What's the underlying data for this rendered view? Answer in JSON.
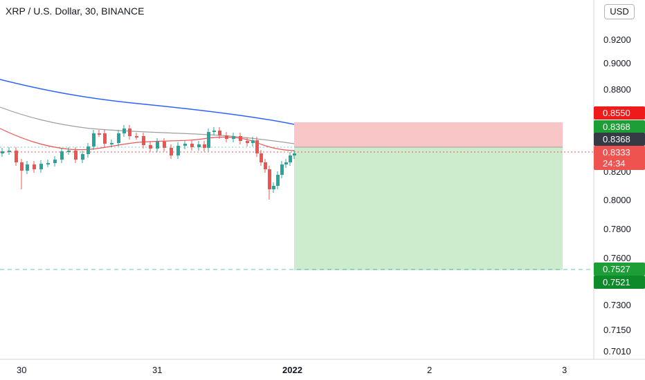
{
  "header": {
    "title": "XRP / U.S. Dollar, 30, BINANCE",
    "currency": "USD"
  },
  "price_axis": {
    "ticks": [
      "0.9200",
      "0.9000",
      "0.8800",
      "0.8200",
      "0.8000",
      "0.7800",
      "0.7600",
      "0.7300",
      "0.7150",
      "0.7010"
    ]
  },
  "time_axis": {
    "ticks": [
      "30",
      "31",
      "2022",
      "2",
      "3"
    ]
  },
  "position_tool": {
    "stop_price": "0.8550",
    "entry_price": "0.8368",
    "target_price": "0.7527",
    "target_price_alt": "0.7521"
  },
  "last_price": {
    "price_gray": "0.8368",
    "current_price": "0.8333",
    "countdown": "24:34"
  },
  "colors": {
    "up_candle": "#26a69a",
    "down_candle": "#ef5350",
    "ma_blue": "#2962ff",
    "ma_gray": "#9e9e9e",
    "ma_red": "#ef5350",
    "stop_zone": "#f8c6c6",
    "target_zone": "#cdebcd",
    "green_tag": "#1e9e36",
    "red_tag": "#ef1b1b",
    "dark_tag": "#363a45"
  },
  "chart_data": {
    "type": "candlestick",
    "symbol": "XRP / U.S. Dollar",
    "interval": "30",
    "exchange": "BINANCE",
    "y_axis_labels": [
      0.92,
      0.9,
      0.88,
      0.82,
      0.8,
      0.78,
      0.76,
      0.73,
      0.715,
      0.701
    ],
    "x_axis_labels": [
      "30",
      "31",
      "2022",
      "2",
      "3"
    ],
    "approx_price_range": [
      0.803,
      0.852
    ],
    "moving_averages": [
      {
        "color": "blue",
        "start": 0.882,
        "end": 0.848
      },
      {
        "color": "gray",
        "start": 0.863,
        "end": 0.843
      },
      {
        "color": "red",
        "start": 0.849,
        "end": 0.835
      }
    ],
    "short_position": {
      "entry": 0.8368,
      "stop": 0.855,
      "target": 0.7527
    },
    "last_price": 0.8333,
    "candle_low": 0.803,
    "candle_high": 0.852
  }
}
